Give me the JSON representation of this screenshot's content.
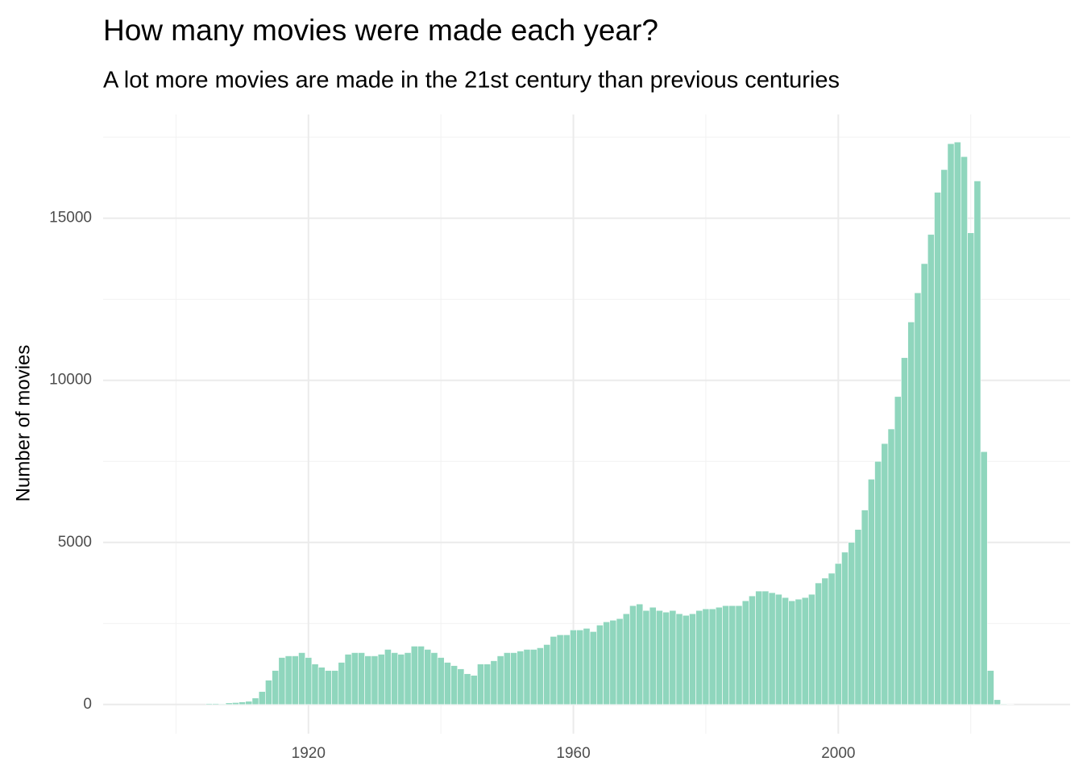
{
  "chart_data": {
    "type": "bar",
    "title": "How many movies were made each year?",
    "subtitle": "A lot more movies are made in the 21st century than previous centuries",
    "y_label": "Number of movies",
    "color": "#8fd6bd",
    "grid": true,
    "xlim": [
      1889,
      2035
    ],
    "ylim": [
      -900,
      18200
    ],
    "xticks": [
      1920,
      1960,
      2000
    ],
    "yticks": [
      0,
      5000,
      10000,
      15000
    ],
    "xminor": [
      1900,
      1940,
      1980,
      2020
    ],
    "yminor": [
      2500,
      7500,
      12500,
      17500
    ],
    "x": [
      1905,
      1906,
      1907,
      1908,
      1909,
      1910,
      1911,
      1912,
      1913,
      1914,
      1915,
      1916,
      1917,
      1918,
      1919,
      1920,
      1921,
      1922,
      1923,
      1924,
      1925,
      1926,
      1927,
      1928,
      1929,
      1930,
      1931,
      1932,
      1933,
      1934,
      1935,
      1936,
      1937,
      1938,
      1939,
      1940,
      1941,
      1942,
      1943,
      1944,
      1945,
      1946,
      1947,
      1948,
      1949,
      1950,
      1951,
      1952,
      1953,
      1954,
      1955,
      1956,
      1957,
      1958,
      1959,
      1960,
      1961,
      1962,
      1963,
      1964,
      1965,
      1966,
      1967,
      1968,
      1969,
      1970,
      1971,
      1972,
      1973,
      1974,
      1975,
      1976,
      1977,
      1978,
      1979,
      1980,
      1981,
      1982,
      1983,
      1984,
      1985,
      1986,
      1987,
      1988,
      1989,
      1990,
      1991,
      1992,
      1993,
      1994,
      1995,
      1996,
      1997,
      1998,
      1999,
      2000,
      2001,
      2002,
      2003,
      2004,
      2005,
      2006,
      2007,
      2008,
      2009,
      2010,
      2011,
      2012,
      2013,
      2014,
      2015,
      2016,
      2017,
      2018,
      2019,
      2020,
      2021,
      2022,
      2023,
      2024,
      2025,
      2026
    ],
    "values": [
      30,
      30,
      20,
      50,
      60,
      80,
      100,
      200,
      400,
      750,
      1050,
      1450,
      1500,
      1500,
      1600,
      1450,
      1250,
      1150,
      1050,
      1050,
      1300,
      1550,
      1600,
      1600,
      1500,
      1500,
      1550,
      1700,
      1600,
      1550,
      1600,
      1800,
      1800,
      1700,
      1600,
      1450,
      1300,
      1200,
      1100,
      950,
      900,
      1250,
      1250,
      1350,
      1500,
      1600,
      1600,
      1650,
      1700,
      1700,
      1750,
      1850,
      2100,
      2150,
      2150,
      2300,
      2300,
      2350,
      2250,
      2450,
      2550,
      2600,
      2650,
      2800,
      3050,
      3100,
      2900,
      3000,
      2900,
      2850,
      2900,
      2800,
      2750,
      2800,
      2900,
      2950,
      2950,
      3000,
      3050,
      3050,
      3050,
      3200,
      3350,
      3500,
      3500,
      3450,
      3400,
      3300,
      3200,
      3250,
      3300,
      3400,
      3750,
      3900,
      4050,
      4350,
      4700,
      5000,
      5400,
      6000,
      6950,
      7500,
      8050,
      8500,
      9500,
      10700,
      11800,
      12700,
      13600,
      14500,
      15800,
      16500,
      17300,
      17350,
      16900,
      14550,
      16150,
      7800,
      1050,
      150,
      20,
      10
    ]
  }
}
